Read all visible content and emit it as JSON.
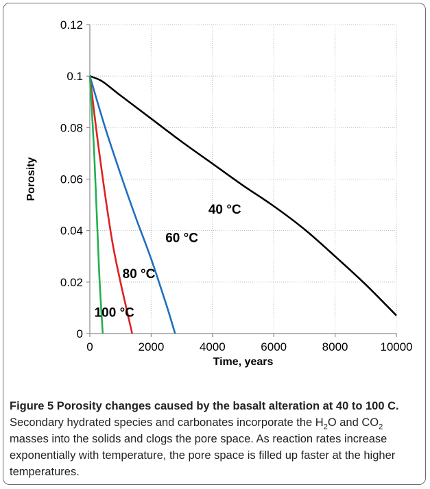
{
  "chart_data": {
    "type": "line",
    "xlabel": "Time, years",
    "ylabel": "Porosity",
    "xlim": [
      0,
      10000
    ],
    "ylim": [
      0,
      0.12
    ],
    "x_ticks": [
      0,
      2000,
      4000,
      6000,
      8000,
      10000
    ],
    "y_ticks": [
      0,
      0.02,
      0.04,
      0.06,
      0.08,
      0.1,
      0.12
    ],
    "x_tick_labels": [
      "0",
      "2000",
      "4000",
      "6000",
      "8000",
      "10000"
    ],
    "y_tick_labels": [
      "0",
      "0.02",
      "0.04",
      "0.06",
      "0.08",
      "0.1",
      "0.12"
    ],
    "grid": true,
    "series": [
      {
        "name": "40 °C",
        "color": "#000000",
        "points": [
          [
            0,
            0.1
          ],
          [
            400,
            0.098
          ],
          [
            1000,
            0.0925
          ],
          [
            2000,
            0.0835
          ],
          [
            3000,
            0.0745
          ],
          [
            4000,
            0.066
          ],
          [
            5000,
            0.0575
          ],
          [
            6000,
            0.0495
          ],
          [
            7000,
            0.0405
          ],
          [
            8000,
            0.03
          ],
          [
            9000,
            0.019
          ],
          [
            10000,
            0.007
          ]
        ]
      },
      {
        "name": "60 °C",
        "color": "#1f6fc0",
        "points": [
          [
            0,
            0.1
          ],
          [
            500,
            0.08
          ],
          [
            1000,
            0.062
          ],
          [
            1500,
            0.045
          ],
          [
            2000,
            0.029
          ],
          [
            2500,
            0.011
          ],
          [
            2780,
            0
          ]
        ]
      },
      {
        "name": "80 °C",
        "color": "#e02020",
        "points": [
          [
            0,
            0.1
          ],
          [
            300,
            0.071
          ],
          [
            700,
            0.038
          ],
          [
            1000,
            0.02
          ],
          [
            1380,
            0
          ]
        ]
      },
      {
        "name": "100 °C",
        "color": "#22b050",
        "points": [
          [
            0,
            0.1
          ],
          [
            150,
            0.068
          ],
          [
            300,
            0.025
          ],
          [
            420,
            0
          ]
        ]
      }
    ]
  },
  "caption": {
    "figure_label": "Figure 5 Porosity changes caused by the basalt alteration at 40 to 100 C.",
    "text_a": " Secondary hydrated species and carbonates incorporate the H",
    "sub_a": "2",
    "text_b": "O and CO",
    "sub_b": "2",
    "text_c": " masses into the solids and clogs the pore space. As reaction rates increase exponentially with temperature, the pore space is filled up faster at the higher temperatures."
  }
}
